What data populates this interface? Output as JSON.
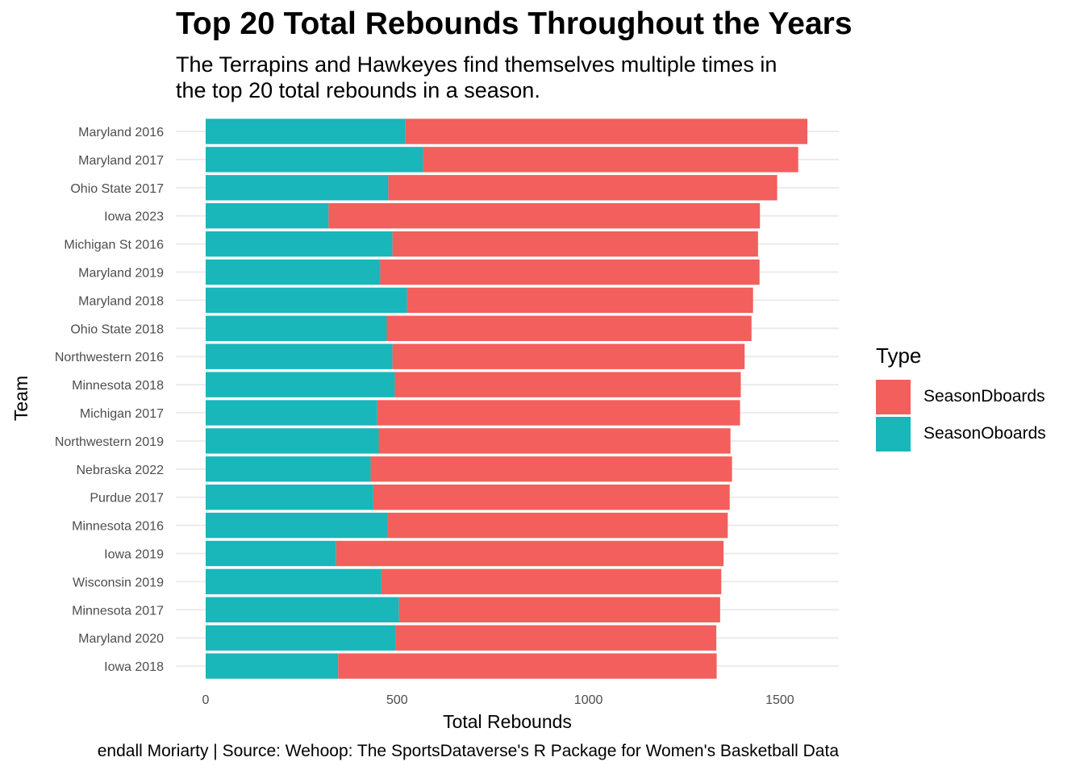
{
  "title": "Top 20 Total Rebounds Throughout the Years",
  "subtitle": "The Terrapins and Hawkeyes find themselves multiple times in the top 20 total rebounds in a season.",
  "caption": "endall Moriarty  |  Source: Wehoop: The SportsDataverse's R Package for Women's Basketball Data",
  "chart_data": {
    "type": "bar",
    "orientation": "horizontal",
    "stacked": true,
    "xlabel": "Total Rebounds",
    "ylabel": "Team",
    "xlim": [
      0,
      1650
    ],
    "xticks": [
      0,
      500,
      1000,
      1500
    ],
    "grid": true,
    "legend_placement": "right",
    "legend_title": "Type",
    "categories": [
      "Maryland 2016",
      "Maryland 2017",
      "Ohio State 2017",
      "Iowa 2023",
      "Michigan St 2016",
      "Maryland 2019",
      "Maryland 2018",
      "Ohio State 2018",
      "Northwestern 2016",
      "Minnesota 2018",
      "Michigan 2017",
      "Northwestern 2019",
      "Nebraska 2022",
      "Purdue 2017",
      "Minnesota 2016",
      "Iowa 2019",
      "Wisconsin 2019",
      "Minnesota 2017",
      "Maryland 2020",
      "Iowa 2018"
    ],
    "series": [
      {
        "name": "SeasonOboards",
        "color": "#19B6BA",
        "values": [
          522,
          568,
          477,
          321,
          488,
          456,
          526,
          473,
          488,
          494,
          448,
          452,
          431,
          438,
          475,
          341,
          459,
          505,
          496,
          346
        ]
      },
      {
        "name": "SeasonDboards",
        "color": "#F25F5C",
        "values": [
          1050,
          980,
          1016,
          1127,
          955,
          991,
          904,
          953,
          920,
          904,
          948,
          919,
          944,
          931,
          889,
          1012,
          888,
          839,
          838,
          989
        ]
      }
    ],
    "legend_order": [
      "SeasonDboards",
      "SeasonOboards"
    ]
  }
}
